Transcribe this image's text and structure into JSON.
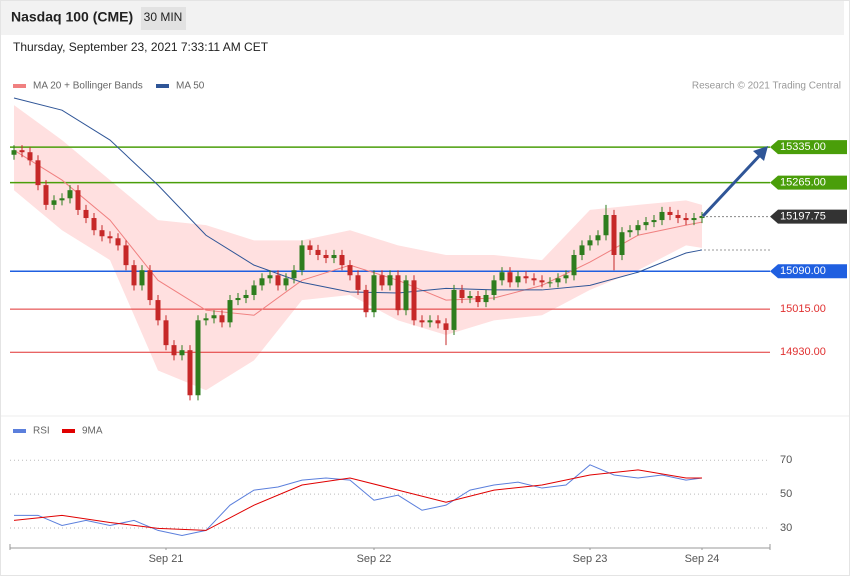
{
  "header": {
    "title": "Nasdaq 100 (CME)",
    "timeframe": "30 MIN",
    "timestamp": "Thursday, September 23, 2021 7:33:11 AM CET",
    "credit": "Research © 2021 Trading Central"
  },
  "chart_data": [
    {
      "type": "candlestick",
      "up_color": "#2e7d1e",
      "down_color": "#c62828",
      "xlim": [
        -0.5,
        94.5
      ],
      "ylim": [
        14806,
        15438
      ],
      "xticks": [
        {
          "value": 19,
          "label": "Sep 21"
        },
        {
          "value": 45,
          "label": "Sep 22"
        },
        {
          "value": 72,
          "label": "Sep 23"
        },
        {
          "value": 86,
          "label": "Sep 24"
        }
      ],
      "candles": [
        [
          15320,
          15339,
          15310,
          15329
        ],
        [
          15329,
          15339,
          15315,
          15325
        ],
        [
          15325,
          15335,
          15299,
          15309
        ],
        [
          15309,
          15319,
          15250,
          15260
        ],
        [
          15260,
          15270,
          15211,
          15221
        ],
        [
          15221,
          15240,
          15211,
          15230
        ],
        [
          15230,
          15244,
          15220,
          15234
        ],
        [
          15234,
          15260,
          15224,
          15250
        ],
        [
          15250,
          15260,
          15201,
          15211
        ],
        [
          15211,
          15221,
          15185,
          15195
        ],
        [
          15195,
          15205,
          15161,
          15171
        ],
        [
          15171,
          15181,
          15149,
          15159
        ],
        [
          15159,
          15169,
          15145,
          15155
        ],
        [
          15155,
          15165,
          15131,
          15141
        ],
        [
          15141,
          15151,
          15092,
          15102
        ],
        [
          15102,
          15112,
          15052,
          15062
        ],
        [
          15062,
          15102,
          15052,
          15092
        ],
        [
          15092,
          15102,
          15023,
          15033
        ],
        [
          15033,
          15043,
          14983,
          14993
        ],
        [
          14993,
          15003,
          14934,
          14944
        ],
        [
          14944,
          14954,
          14914,
          14924
        ],
        [
          14924,
          14944,
          14914,
          14934
        ],
        [
          14934,
          14944,
          14835,
          14845
        ],
        [
          14845,
          15003,
          14835,
          14993
        ],
        [
          14993,
          15007,
          14983,
          14997
        ],
        [
          14997,
          15013,
          14987,
          15003
        ],
        [
          15003,
          15013,
          14979,
          14989
        ],
        [
          14989,
          15043,
          14979,
          15033
        ],
        [
          15033,
          15047,
          15023,
          15037
        ],
        [
          15037,
          15053,
          15027,
          15043
        ],
        [
          15043,
          15072,
          15033,
          15062
        ],
        [
          15062,
          15086,
          15052,
          15076
        ],
        [
          15076,
          15092,
          15066,
          15082
        ],
        [
          15082,
          15092,
          15052,
          15062
        ],
        [
          15062,
          15086,
          15052,
          15076
        ],
        [
          15076,
          15102,
          15066,
          15092
        ],
        [
          15092,
          15151,
          15082,
          15141
        ],
        [
          15141,
          15151,
          15122,
          15132
        ],
        [
          15132,
          15142,
          15112,
          15122
        ],
        [
          15122,
          15132,
          15106,
          15116
        ],
        [
          15116,
          15132,
          15106,
          15122
        ],
        [
          15122,
          15132,
          15092,
          15102
        ],
        [
          15102,
          15112,
          15072,
          15082
        ],
        [
          15082,
          15092,
          15043,
          15053
        ],
        [
          15053,
          15063,
          14999,
          15009
        ],
        [
          15009,
          15092,
          14999,
          15082
        ],
        [
          15082,
          15092,
          15052,
          15062
        ],
        [
          15062,
          15092,
          15052,
          15082
        ],
        [
          15082,
          15092,
          15003,
          15013
        ],
        [
          15013,
          15082,
          15003,
          15072
        ],
        [
          15072,
          15082,
          14983,
          14993
        ],
        [
          14993,
          15003,
          14979,
          14989
        ],
        [
          14989,
          15003,
          14979,
          14993
        ],
        [
          14993,
          15003,
          14977,
          14987
        ],
        [
          14987,
          14997,
          14944,
          14974
        ],
        [
          14974,
          15063,
          14964,
          15053
        ],
        [
          15053,
          15063,
          15027,
          15037
        ],
        [
          15037,
          15051,
          15027,
          15041
        ],
        [
          15041,
          15051,
          15019,
          15029
        ],
        [
          15029,
          15053,
          15019,
          15043
        ],
        [
          15043,
          15082,
          15033,
          15072
        ],
        [
          15072,
          15098,
          15062,
          15088
        ],
        [
          15088,
          15098,
          15058,
          15068
        ],
        [
          15068,
          15090,
          15058,
          15080
        ],
        [
          15080,
          15090,
          15066,
          15076
        ],
        [
          15076,
          15086,
          15062,
          15072
        ],
        [
          15072,
          15082,
          15058,
          15068
        ],
        [
          15068,
          15078,
          15058,
          15068
        ],
        [
          15068,
          15086,
          15058,
          15076
        ],
        [
          15076,
          15092,
          15066,
          15082
        ],
        [
          15082,
          15132,
          15072,
          15122
        ],
        [
          15122,
          15151,
          15112,
          15141
        ],
        [
          15141,
          15161,
          15131,
          15151
        ],
        [
          15151,
          15171,
          15141,
          15161
        ],
        [
          15161,
          15221,
          15151,
          15201
        ],
        [
          15201,
          15211,
          15092,
          15122
        ],
        [
          15122,
          15177,
          15112,
          15167
        ],
        [
          15167,
          15181,
          15157,
          15171
        ],
        [
          15171,
          15191,
          15161,
          15181
        ],
        [
          15181,
          15197,
          15171,
          15187
        ],
        [
          15187,
          15201,
          15177,
          15191
        ],
        [
          15191,
          15217,
          15181,
          15207
        ],
        [
          15207,
          15217,
          15191,
          15201
        ],
        [
          15201,
          15211,
          15185,
          15195
        ],
        [
          15195,
          15205,
          15181,
          15191
        ],
        [
          15191,
          15205,
          15181,
          15195
        ],
        [
          15195,
          15207,
          15185,
          15199
        ]
      ],
      "series": [
        {
          "name": "MA 20 + Bollinger Bands",
          "color": "#f08080",
          "band_color": "#ffe0e0",
          "x": [
            0,
            6,
            12,
            18,
            24,
            30,
            36,
            42,
            48,
            54,
            60,
            66,
            72,
            78,
            84,
            86
          ],
          "values": [
            15329,
            15270,
            15191,
            15072,
            15013,
            15003,
            15072,
            15102,
            15072,
            15033,
            15037,
            15062,
            15108,
            15161,
            15181,
            15187
          ],
          "upper": [
            15418,
            15349,
            15270,
            15191,
            15181,
            15151,
            15151,
            15171,
            15141,
            15122,
            15122,
            15112,
            15211,
            15221,
            15230,
            15221
          ],
          "lower": [
            15250,
            15171,
            15112,
            14894,
            14855,
            14914,
            15033,
            15043,
            14993,
            14964,
            14993,
            15003,
            15053,
            15092,
            15141,
            15136
          ]
        },
        {
          "name": "MA 50",
          "color": "#2f5597",
          "x": [
            0,
            6,
            12,
            18,
            24,
            30,
            36,
            42,
            48,
            54,
            60,
            66,
            72,
            78,
            84,
            86
          ],
          "values": [
            15432,
            15408,
            15349,
            15260,
            15161,
            15102,
            15068,
            15049,
            15047,
            15056,
            15053,
            15053,
            15062,
            15088,
            15126,
            15132
          ]
        }
      ],
      "levels": [
        {
          "value": 15335,
          "label": "15335.00",
          "color": "#4a9e0a",
          "boxed": true
        },
        {
          "value": 15265,
          "label": "15265.00",
          "color": "#4a9e0a",
          "boxed": true
        },
        {
          "value": 15090,
          "label": "15090.00",
          "color": "#1f5fe0",
          "boxed": true
        },
        {
          "value": 15015,
          "label": "15015.00",
          "color": "#e03030",
          "boxed": false
        },
        {
          "value": 14930,
          "label": "14930.00",
          "color": "#e03030",
          "boxed": false
        }
      ],
      "last": {
        "value": 15197.75,
        "label": "15197.75",
        "color": "#333333"
      }
    },
    {
      "type": "line",
      "xlim": [
        -0.5,
        94.5
      ],
      "ylim": [
        20,
        79
      ],
      "yticks": [
        70,
        50,
        30
      ],
      "series": [
        {
          "name": "RSI",
          "color": "#5b7fdc",
          "x": [
            0,
            3,
            6,
            9,
            12,
            15,
            18,
            21,
            24,
            27,
            30,
            33,
            36,
            39,
            42,
            45,
            48,
            51,
            54,
            57,
            60,
            63,
            66,
            69,
            72,
            75,
            78,
            81,
            84,
            86
          ],
          "values": [
            37.5,
            37.5,
            31.5,
            34.5,
            31.5,
            34.5,
            28.6,
            25.6,
            28.6,
            43.5,
            52.4,
            54.2,
            58.3,
            59.5,
            58.3,
            46.4,
            49.4,
            40.5,
            43.5,
            52.4,
            55.4,
            57.1,
            53.6,
            55.4,
            67.3,
            61.3,
            59.5,
            61.3,
            58.3,
            59.5
          ]
        },
        {
          "name": "9MA",
          "color": "#e00000",
          "x": [
            0,
            6,
            12,
            18,
            24,
            30,
            36,
            42,
            48,
            54,
            60,
            66,
            72,
            78,
            84,
            86
          ],
          "values": [
            34.5,
            37.5,
            33.3,
            29.8,
            28.6,
            43.5,
            55.4,
            59.5,
            52.4,
            45.2,
            52.4,
            55.4,
            61.3,
            64.3,
            59.5,
            59.5
          ]
        }
      ]
    }
  ]
}
